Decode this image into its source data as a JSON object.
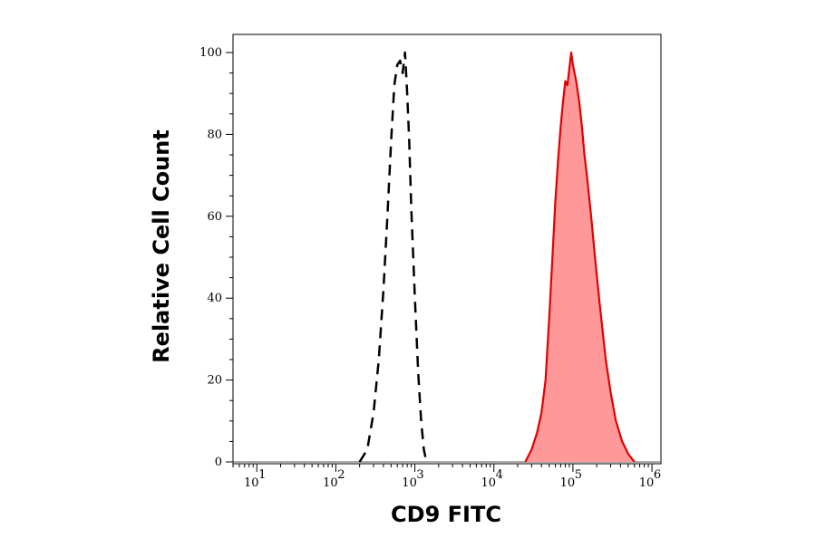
{
  "chart_data": {
    "type": "area",
    "xlabel": "CD9 FITC",
    "ylabel": "Relative Cell Count",
    "xscale": "log",
    "xlim": [
      5,
      1300000
    ],
    "ylim": [
      0,
      100
    ],
    "grid": false,
    "legend": "none",
    "x_ticks": [
      {
        "value": 10,
        "base": "10",
        "exp": "1"
      },
      {
        "value": 100,
        "base": "10",
        "exp": "2"
      },
      {
        "value": 1000,
        "base": "10",
        "exp": "3"
      },
      {
        "value": 10000,
        "base": "10",
        "exp": "4"
      },
      {
        "value": 100000,
        "base": "10",
        "exp": "5"
      },
      {
        "value": 1000000,
        "base": "10",
        "exp": "6"
      }
    ],
    "y_ticks": [
      "0",
      "20",
      "40",
      "60",
      "80",
      "100"
    ],
    "series": [
      {
        "style": "dashed-outline",
        "color": "#000000",
        "x": [
          200,
          250,
          300,
          350,
          400,
          450,
          500,
          550,
          600,
          650,
          700,
          750,
          800,
          850,
          900,
          1000,
          1100,
          1200,
          1300,
          1400
        ],
        "y": [
          0,
          3,
          12,
          25,
          42,
          60,
          78,
          92,
          97,
          98,
          95,
          100,
          90,
          78,
          62,
          40,
          22,
          10,
          3,
          0
        ]
      },
      {
        "style": "filled",
        "color": "#e00000",
        "fill": "#ff9999",
        "x": [
          25000,
          30000,
          35000,
          40000,
          45000,
          50000,
          55000,
          60000,
          65000,
          70000,
          75000,
          80000,
          85000,
          90000,
          95000,
          100000,
          110000,
          120000,
          130000,
          140000,
          150000,
          170000,
          190000,
          220000,
          260000,
          300000,
          350000,
          420000,
          500000,
          600000
        ],
        "y": [
          0,
          3,
          7,
          12,
          20,
          35,
          50,
          64,
          74,
          82,
          88,
          93,
          92,
          96,
          100,
          97,
          93,
          88,
          82,
          75,
          70,
          60,
          50,
          38,
          25,
          17,
          10,
          5,
          2,
          0
        ]
      }
    ]
  }
}
